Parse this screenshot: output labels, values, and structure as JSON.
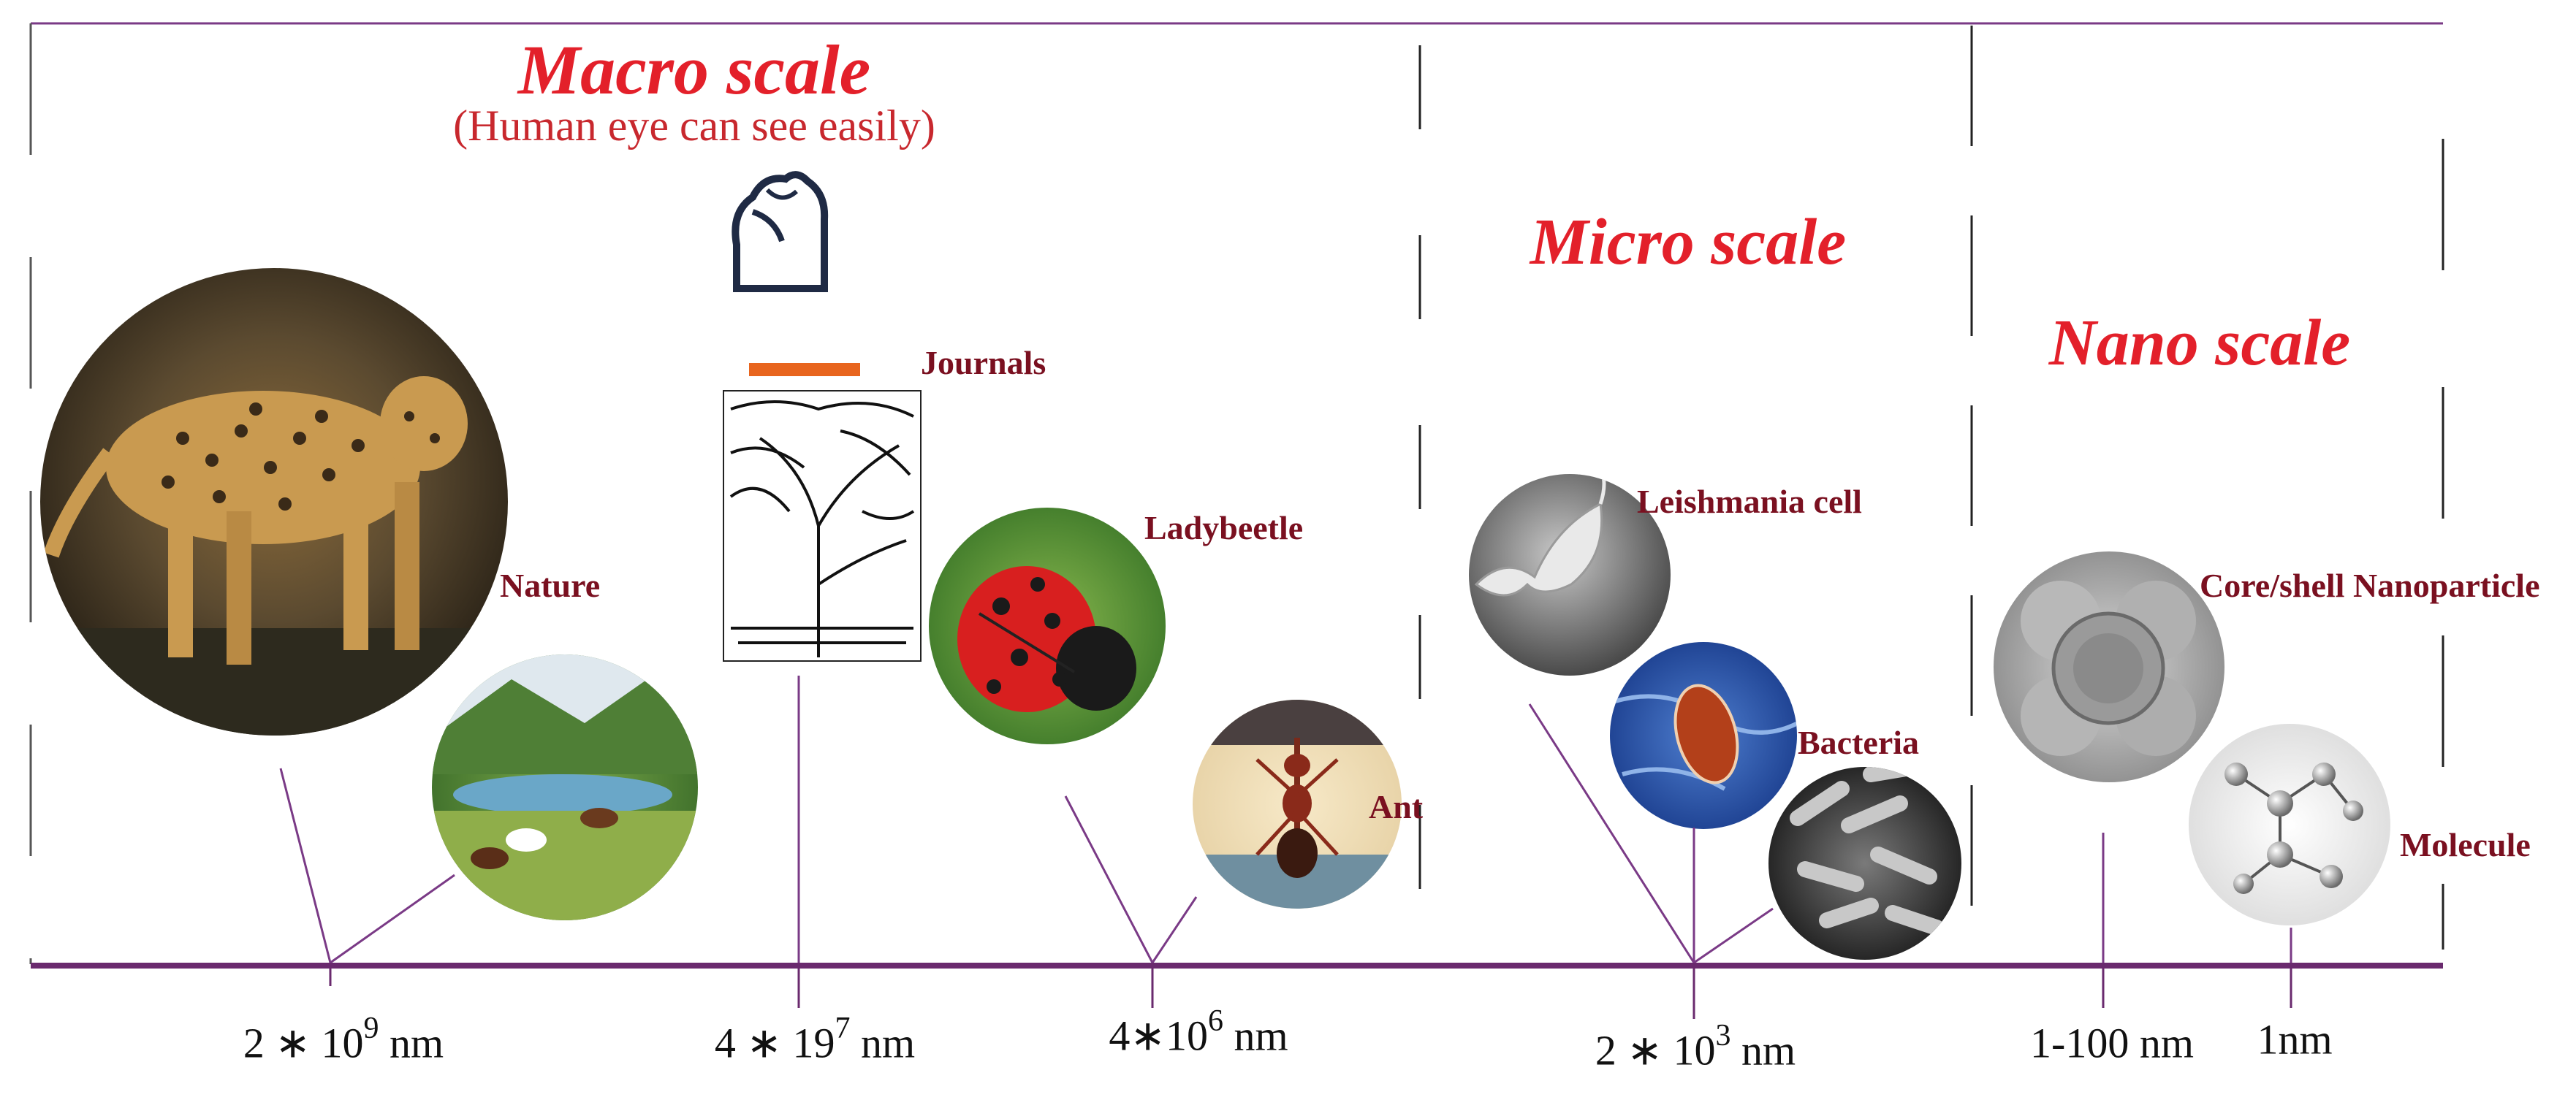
{
  "diagram": {
    "sections": [
      {
        "title": "Macro scale",
        "subtitle": "(Human eye can see easily)"
      },
      {
        "title": "Micro scale"
      },
      {
        "title": "Nano scale"
      }
    ],
    "items": {
      "cheetah": "Cheetah photo",
      "nature": "Nature",
      "journals": "Journals",
      "ladybeetle": "Ladybeetle",
      "ant": "Ant",
      "leishmania": "Leishmania cell",
      "bacteria": "Bacteria",
      "nanoparticle": "Core/shell Nanoparticle",
      "molecule": "Molecule"
    },
    "axis_ticks": [
      {
        "base": "2 ∗ 10",
        "exp": "9",
        "unit": "  nm"
      },
      {
        "base": "4 ∗ 19",
        "exp": "7",
        "unit": "  nm"
      },
      {
        "base": "4∗10",
        "exp": "6",
        "unit": "  nm"
      },
      {
        "base": "2 ∗ 10",
        "exp": "3",
        "unit": " nm"
      },
      {
        "base": "1-100 nm",
        "exp": "",
        "unit": ""
      },
      {
        "base": "1nm",
        "exp": "",
        "unit": ""
      }
    ],
    "colors": {
      "title": "#e3202a",
      "label": "#7a1020",
      "axis": "#6a2a6e",
      "leader": "#7a3a86",
      "divider": "#222222"
    }
  }
}
